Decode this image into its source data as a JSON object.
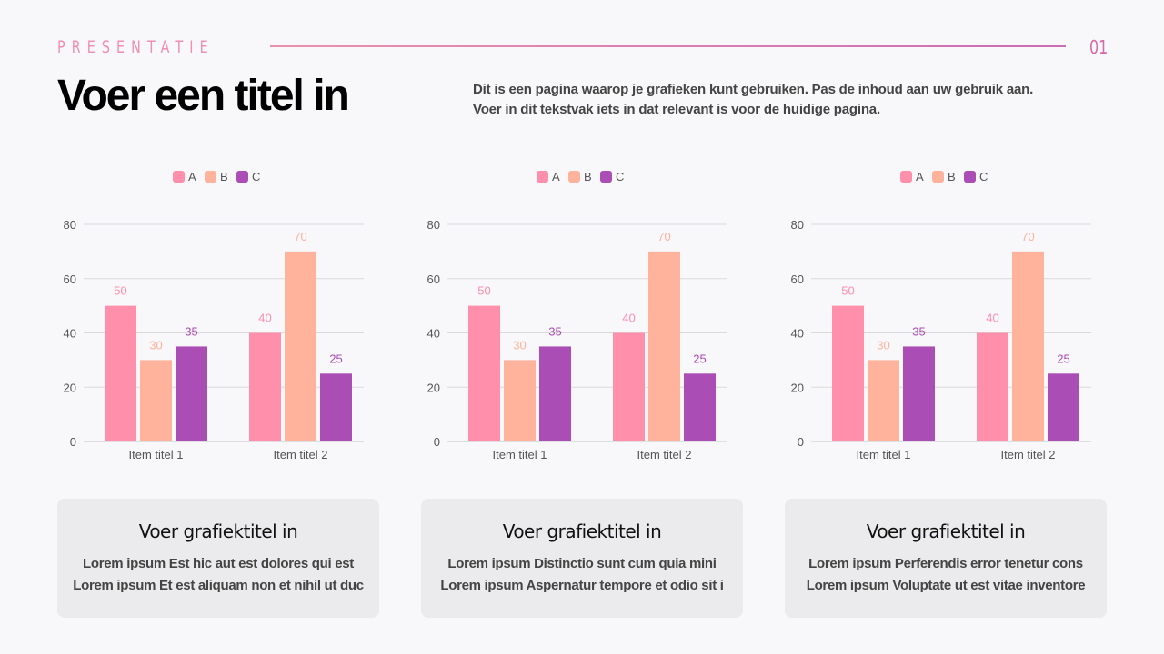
{
  "header": {
    "kicker": "PRESENTATIE",
    "page_number": "01",
    "title": "Voer een titel in",
    "description": [
      "Dit is een pagina waarop je grafieken kunt gebruiken. Pas de inhoud aan uw gebruik aan.",
      "Voer in dit tekstvak iets in dat relevant is voor de huidige pagina."
    ]
  },
  "colors": {
    "A": "#ff8fab",
    "B": "#ffb39c",
    "C": "#aa4db4",
    "accent": "#f08fb0"
  },
  "chart_data": [
    {
      "type": "bar",
      "categories": [
        "Item titel 1",
        "Item titel 2"
      ],
      "ylim": [
        0,
        80
      ],
      "yticks": [
        0,
        20,
        40,
        60,
        80
      ],
      "grid": true,
      "legend": "top",
      "series": [
        {
          "name": "A",
          "values": [
            50,
            40
          ]
        },
        {
          "name": "B",
          "values": [
            30,
            70
          ]
        },
        {
          "name": "C",
          "values": [
            35,
            25
          ]
        }
      ]
    },
    {
      "type": "bar",
      "categories": [
        "Item titel 1",
        "Item titel 2"
      ],
      "ylim": [
        0,
        80
      ],
      "yticks": [
        0,
        20,
        40,
        60,
        80
      ],
      "grid": true,
      "legend": "top",
      "series": [
        {
          "name": "A",
          "values": [
            50,
            40
          ]
        },
        {
          "name": "B",
          "values": [
            30,
            70
          ]
        },
        {
          "name": "C",
          "values": [
            35,
            25
          ]
        }
      ]
    },
    {
      "type": "bar",
      "categories": [
        "Item titel 1",
        "Item titel 2"
      ],
      "ylim": [
        0,
        80
      ],
      "yticks": [
        0,
        20,
        40,
        60,
        80
      ],
      "grid": true,
      "legend": "top",
      "series": [
        {
          "name": "A",
          "values": [
            50,
            40
          ]
        },
        {
          "name": "B",
          "values": [
            30,
            70
          ]
        },
        {
          "name": "C",
          "values": [
            35,
            25
          ]
        }
      ]
    }
  ],
  "cards": [
    {
      "title": "Voer grafiektitel in",
      "lines": [
        "Lorem ipsum Est hic aut est dolores qui est",
        "Lorem ipsum Et est aliquam non et nihil ut duc"
      ]
    },
    {
      "title": "Voer grafiektitel in",
      "lines": [
        "Lorem ipsum Distinctio sunt cum quia mini",
        "Lorem ipsum Aspernatur tempore et odio sit i"
      ]
    },
    {
      "title": "Voer grafiektitel in",
      "lines": [
        "Lorem ipsum Perferendis error tenetur cons",
        "Lorem ipsum Voluptate ut est vitae inventore"
      ]
    }
  ]
}
